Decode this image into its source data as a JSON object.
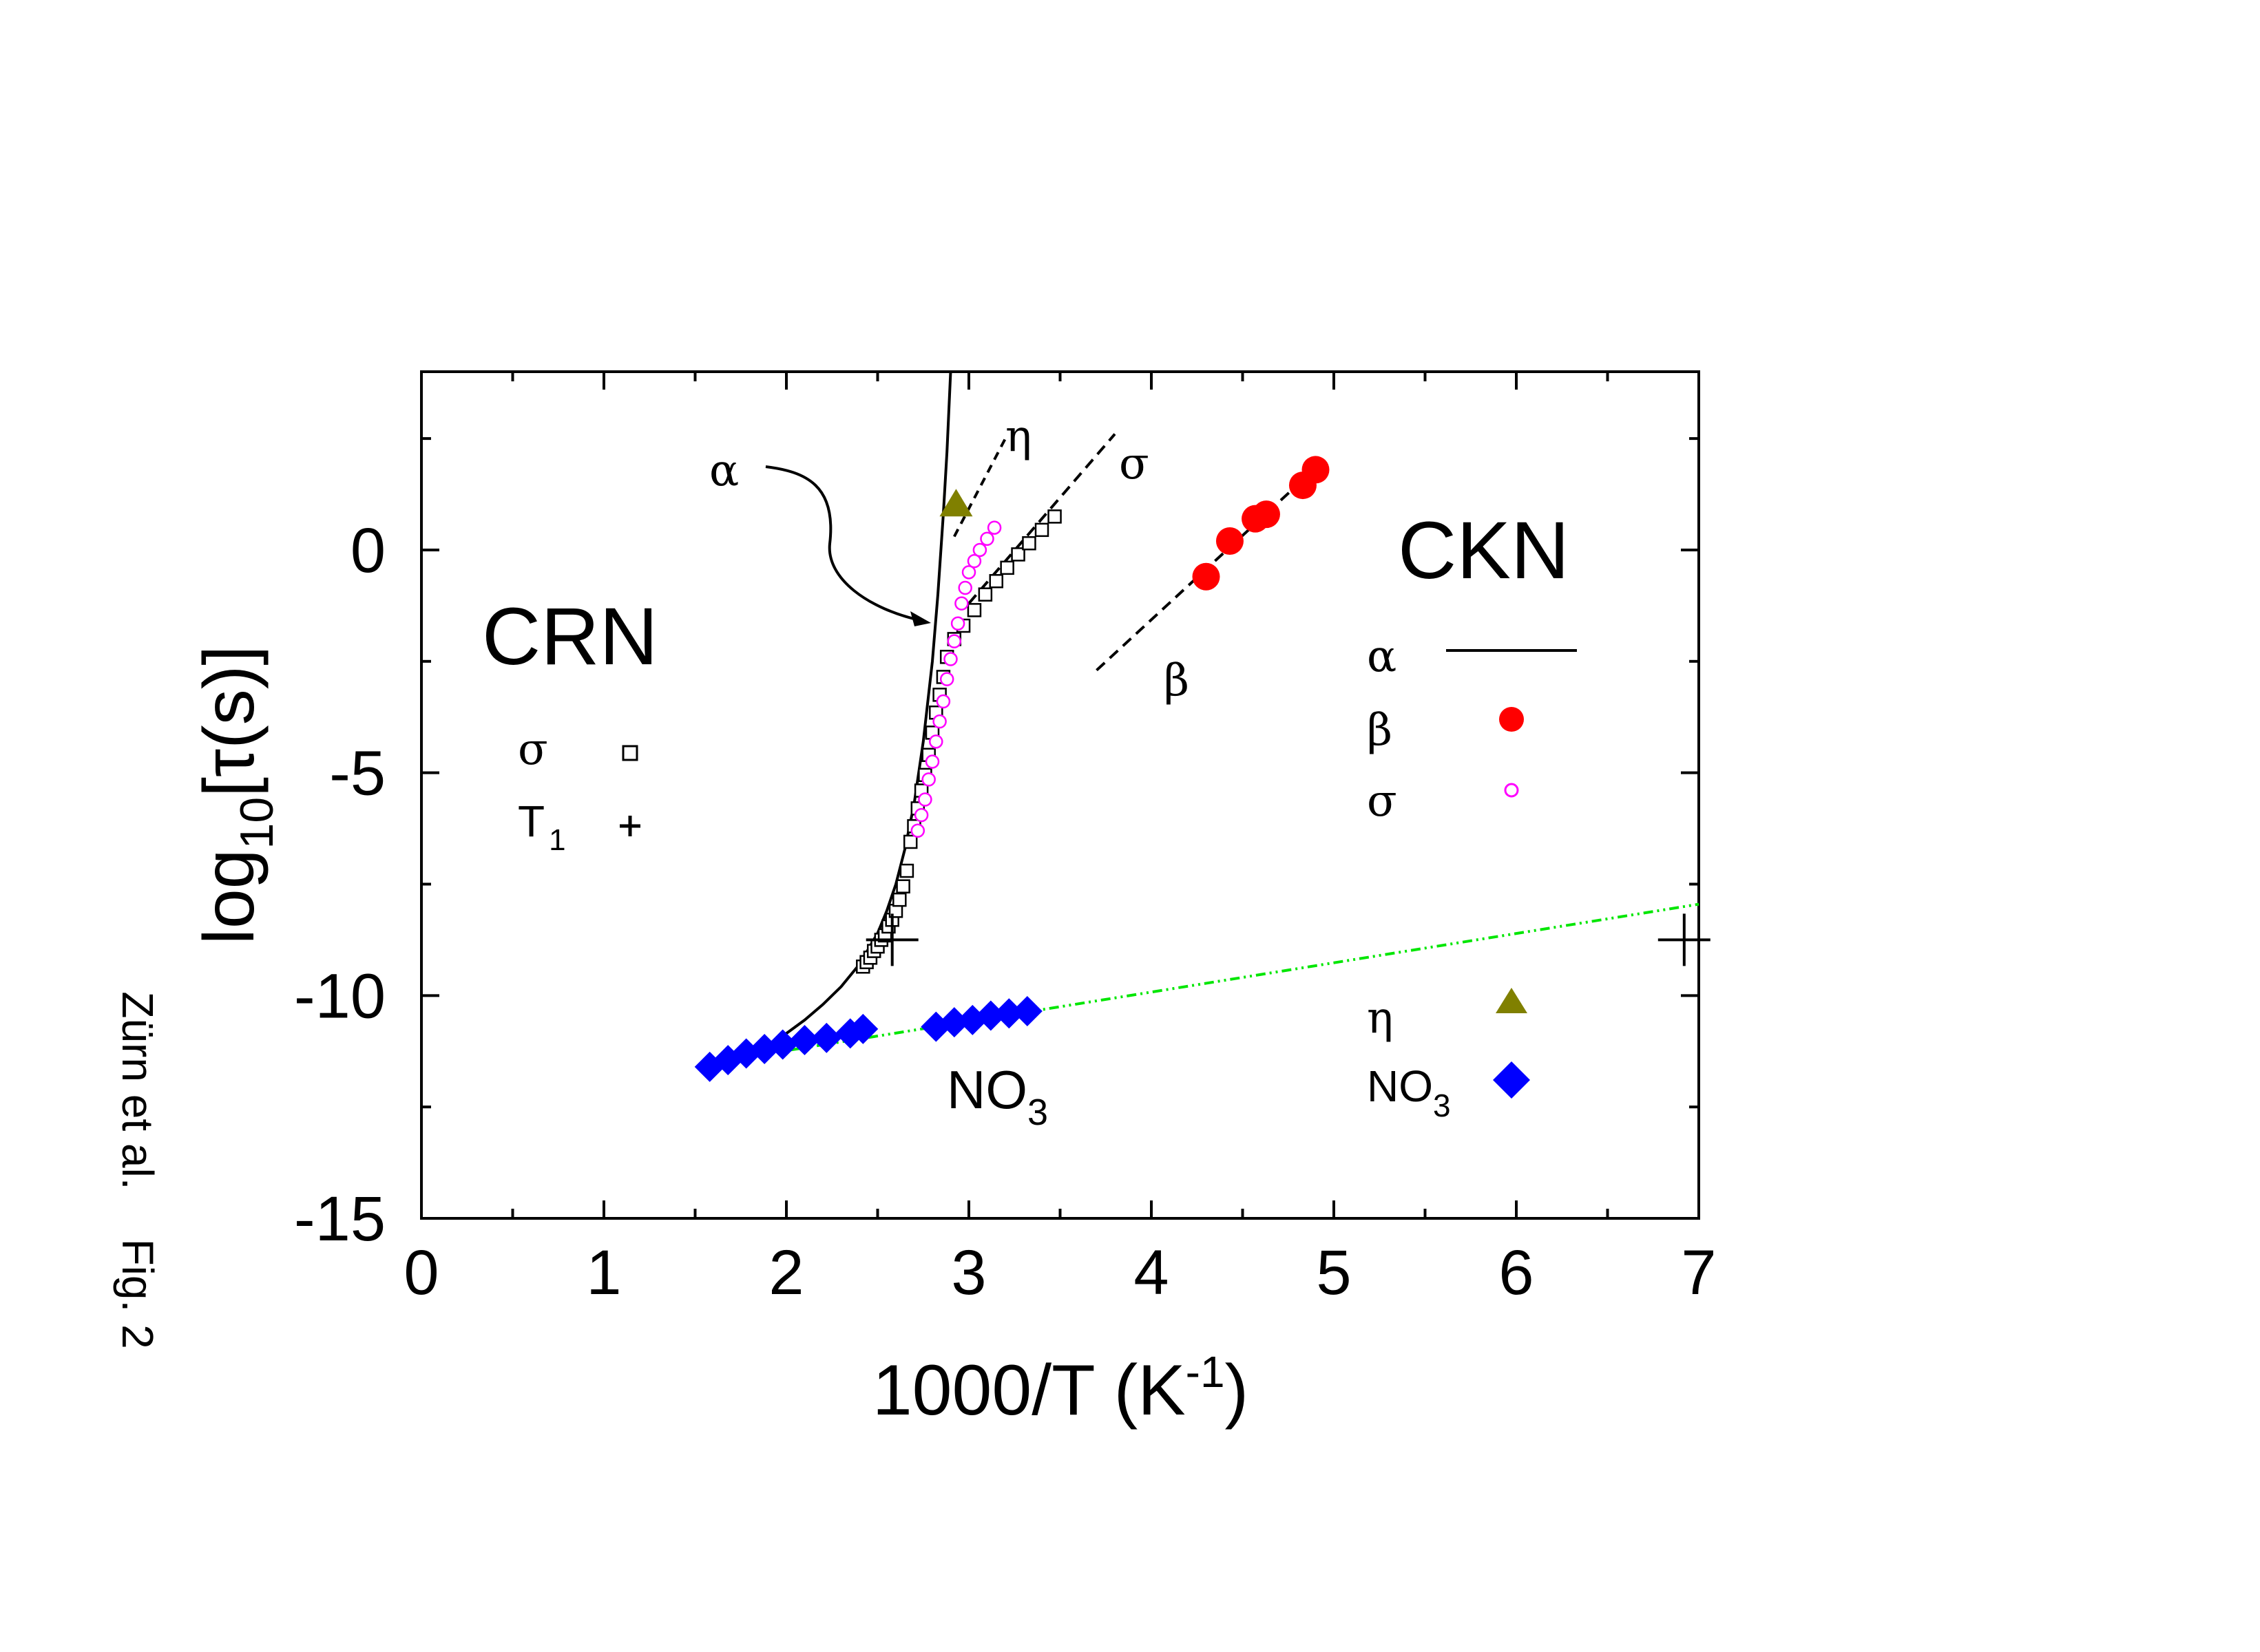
{
  "credit": "Zürn et al.    Fig. 2",
  "chart_data": {
    "type": "scatter",
    "xlabel": "1000/T (K",
    "xlabel_sup": "-1",
    "xlabel_end": ")",
    "ylabel_pre": "log",
    "ylabel_sub": "10",
    "ylabel_mid": "[τ(s)]",
    "xlim": [
      0,
      7
    ],
    "ylim": [
      -15,
      4
    ],
    "xticks": [
      0,
      1,
      2,
      3,
      4,
      5,
      6,
      7
    ],
    "yticks": [
      -15,
      -10,
      -5,
      0
    ],
    "grid": false,
    "groups": {
      "crn": "CRN",
      "ckn": "CKN"
    },
    "crn_legend": [
      {
        "label": "σ",
        "marker": "open-square",
        "color": "#000000"
      },
      {
        "label": "T",
        "sub": "1",
        "marker": "plus",
        "color": "#000000"
      }
    ],
    "ckn_legend": [
      {
        "label": "α",
        "marker": "line",
        "color": "#000000"
      },
      {
        "label": "β",
        "marker": "filled-circle",
        "color": "#ff0000"
      },
      {
        "label": "σ",
        "marker": "open-circle",
        "color": "#ff00ff"
      },
      {
        "label": "η",
        "marker": "triangle",
        "color": "#808000"
      },
      {
        "label": "NO",
        "sub": "3",
        "marker": "diamond",
        "color": "#0000ff"
      }
    ],
    "annotations": {
      "alpha": "α",
      "eta": "η",
      "sigma": "σ",
      "beta": "β",
      "no3": "NO",
      "no3_sub": "3"
    },
    "series": {
      "alpha_fit": {
        "color": "#000000",
        "points": [
          [
            1.6,
            -11.6
          ],
          [
            1.7,
            -11.45
          ],
          [
            1.8,
            -11.3
          ],
          [
            1.9,
            -11.1
          ],
          [
            2.0,
            -10.85
          ],
          [
            2.1,
            -10.55
          ],
          [
            2.2,
            -10.2
          ],
          [
            2.3,
            -9.8
          ],
          [
            2.4,
            -9.3
          ],
          [
            2.5,
            -8.6
          ],
          [
            2.55,
            -8.1
          ],
          [
            2.6,
            -7.5
          ],
          [
            2.65,
            -6.7
          ],
          [
            2.7,
            -5.7
          ],
          [
            2.75,
            -4.3
          ],
          [
            2.8,
            -2.5
          ],
          [
            2.83,
            -1.0
          ],
          [
            2.86,
            0.8
          ],
          [
            2.88,
            2.2
          ],
          [
            2.9,
            4.0
          ]
        ]
      },
      "crn_sigma": {
        "color": "#000000",
        "points": [
          [
            2.42,
            -9.35
          ],
          [
            2.44,
            -9.25
          ],
          [
            2.46,
            -9.15
          ],
          [
            2.48,
            -9.0
          ],
          [
            2.5,
            -8.9
          ],
          [
            2.52,
            -8.75
          ],
          [
            2.54,
            -8.65
          ],
          [
            2.56,
            -8.45
          ],
          [
            2.58,
            -8.3
          ],
          [
            2.6,
            -8.1
          ],
          [
            2.62,
            -7.85
          ],
          [
            2.64,
            -7.55
          ],
          [
            2.66,
            -7.2
          ],
          [
            2.68,
            -6.55
          ],
          [
            2.7,
            -6.2
          ],
          [
            2.72,
            -5.8
          ],
          [
            2.74,
            -5.4
          ],
          [
            2.76,
            -5.05
          ],
          [
            2.78,
            -4.6
          ],
          [
            2.8,
            -4.1
          ],
          [
            2.82,
            -3.65
          ],
          [
            2.84,
            -3.25
          ],
          [
            2.86,
            -2.85
          ],
          [
            2.88,
            -2.4
          ],
          [
            2.92,
            -2.0
          ],
          [
            2.97,
            -1.7
          ],
          [
            3.03,
            -1.35
          ],
          [
            3.09,
            -1.0
          ],
          [
            3.15,
            -0.7
          ],
          [
            3.21,
            -0.4
          ],
          [
            3.27,
            -0.1
          ],
          [
            3.33,
            0.15
          ],
          [
            3.4,
            0.45
          ],
          [
            3.47,
            0.75
          ]
        ]
      },
      "crn_t1": {
        "color": "#000000",
        "points": [
          [
            2.58,
            -8.75
          ],
          [
            6.92,
            -8.75
          ]
        ]
      },
      "ckn_sigma": {
        "color": "#ff00ff",
        "points": [
          [
            2.72,
            -6.3
          ],
          [
            2.74,
            -5.95
          ],
          [
            2.76,
            -5.6
          ],
          [
            2.78,
            -5.15
          ],
          [
            2.8,
            -4.75
          ],
          [
            2.82,
            -4.3
          ],
          [
            2.84,
            -3.85
          ],
          [
            2.86,
            -3.4
          ],
          [
            2.88,
            -2.9
          ],
          [
            2.9,
            -2.45
          ],
          [
            2.92,
            -2.05
          ],
          [
            2.94,
            -1.65
          ],
          [
            2.96,
            -1.2
          ],
          [
            2.98,
            -0.85
          ],
          [
            3.0,
            -0.5
          ],
          [
            3.03,
            -0.25
          ],
          [
            3.06,
            0.0
          ],
          [
            3.1,
            0.25
          ],
          [
            3.14,
            0.5
          ]
        ]
      },
      "ckn_beta": {
        "color": "#ff0000",
        "points": [
          [
            4.3,
            -0.6
          ],
          [
            4.43,
            0.2
          ],
          [
            4.57,
            0.7
          ],
          [
            4.63,
            0.8
          ],
          [
            4.83,
            1.45
          ],
          [
            4.9,
            1.8
          ]
        ]
      },
      "ckn_eta": {
        "color": "#808000",
        "points": [
          [
            2.93,
            1.0
          ]
        ]
      },
      "no3": {
        "color": "#0000ff",
        "points": [
          [
            1.58,
            -11.6
          ],
          [
            1.68,
            -11.45
          ],
          [
            1.78,
            -11.3
          ],
          [
            1.88,
            -11.2
          ],
          [
            1.98,
            -11.1
          ],
          [
            2.1,
            -11.0
          ],
          [
            2.22,
            -10.95
          ],
          [
            2.35,
            -10.85
          ],
          [
            2.42,
            -10.75
          ],
          [
            2.82,
            -10.7
          ],
          [
            2.92,
            -10.6
          ],
          [
            3.02,
            -10.55
          ],
          [
            3.12,
            -10.45
          ],
          [
            3.22,
            -10.4
          ],
          [
            3.32,
            -10.35
          ]
        ]
      },
      "no3_fit": {
        "color": "#00e600",
        "points": [
          [
            1.6,
            -11.5
          ],
          [
            7.0,
            -7.95
          ]
        ]
      },
      "eta_fit": {
        "color": "#000000",
        "points": [
          [
            2.92,
            0.3
          ],
          [
            3.2,
            2.5
          ]
        ]
      },
      "sigma_fit": {
        "color": "#000000",
        "points": [
          [
            3.0,
            -1.2
          ],
          [
            3.8,
            2.6
          ]
        ]
      },
      "beta_fit": {
        "color": "#000000",
        "points": [
          [
            3.7,
            -2.7
          ],
          [
            4.93,
            1.95
          ]
        ]
      }
    }
  }
}
